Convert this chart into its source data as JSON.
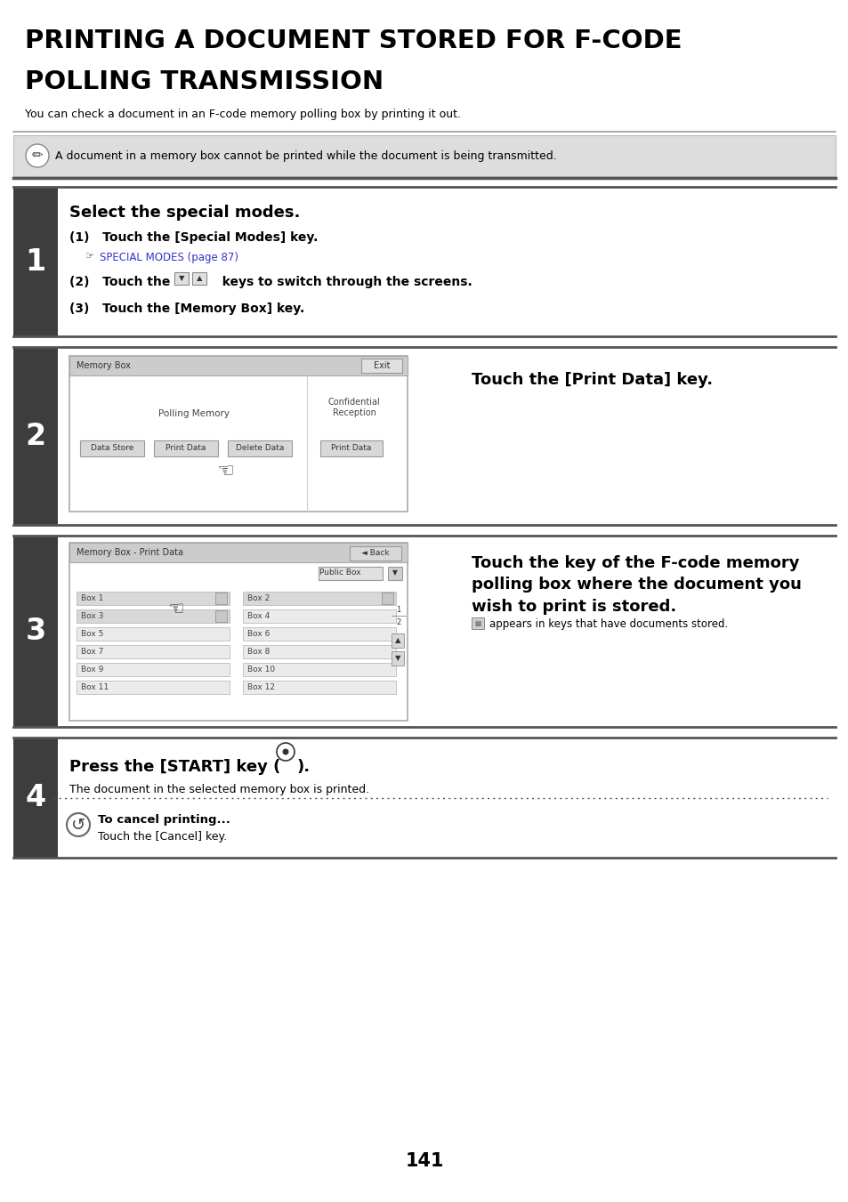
{
  "title_line1": "PRINTING A DOCUMENT STORED FOR F-CODE",
  "title_line2": "POLLING TRANSMISSION",
  "subtitle": "You can check a document in an F-code memory polling box by printing it out.",
  "note_text": "A document in a memory box cannot be printed while the document is being transmitted.",
  "step1_header": "Select the special modes.",
  "step1_1": "(1)   Touch the [Special Modes] key.",
  "step1_link": "SPECIAL MODES (page 87)",
  "step1_3": "(3)   Touch the [Memory Box] key.",
  "step2_header": "Touch the [Print Data] key.",
  "step3_header": "Touch the key of the F-code memory\npolling box where the document you\nwish to print is stored.",
  "step3_note": "appears in keys that have documents stored.",
  "step4_header": "Press the [START] key (",
  "step4_sub": "The document in the selected memory box is printed.",
  "step4_cancel_bold": "To cancel printing...",
  "step4_cancel": "Touch the [Cancel] key.",
  "page_number": "141",
  "bg_color": "#ffffff",
  "step_bar_color": "#3d3d3d",
  "note_bg": "#dddddd",
  "link_color": "#3333cc"
}
